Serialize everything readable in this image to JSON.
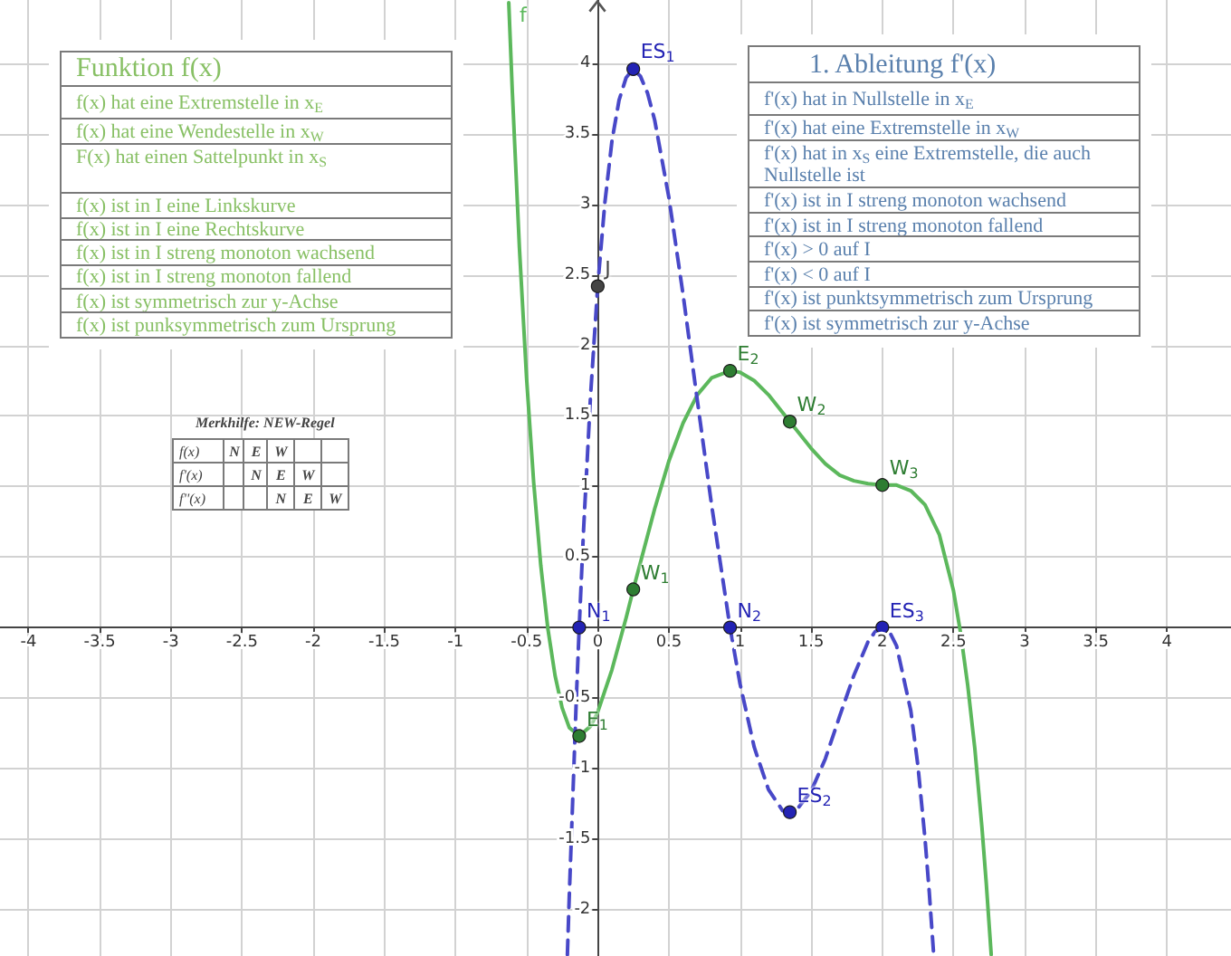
{
  "chart_data": {
    "type": "line",
    "xlim": [
      -4.2,
      4.45
    ],
    "ylim": [
      -2.33,
      4.45
    ],
    "xticks": [
      -4,
      -3.5,
      -3,
      -2.5,
      -2,
      -1.5,
      -1,
      -0.5,
      0,
      0.5,
      1,
      1.5,
      2,
      2.5,
      3,
      3.5,
      4
    ],
    "yticks": [
      -2,
      -1.5,
      -1,
      -0.5,
      {
        "value": 0,
        "label": null
      },
      0.5,
      1,
      1.5,
      2,
      2.5,
      3,
      3.5,
      4
    ],
    "grid": true,
    "series": [
      {
        "name": "f",
        "color": "#5cb85c",
        "line_style": "solid",
        "x": [
          -0.625,
          -0.6,
          -0.55,
          -0.5,
          -0.45,
          -0.4,
          -0.35,
          -0.3,
          -0.25,
          -0.2,
          -0.13,
          -0.05,
          0,
          0.1,
          0.2,
          0.25,
          0.3,
          0.4,
          0.5,
          0.6,
          0.7,
          0.8,
          0.93,
          1,
          1.1,
          1.2,
          1.35,
          1.5,
          1.6,
          1.7,
          1.8,
          1.9,
          2,
          2.1,
          2.2,
          2.3,
          2.4,
          2.5,
          2.55,
          2.6,
          2.65,
          2.7,
          2.73,
          2.765
        ],
        "values": [
          4.43,
          3.8,
          2.69,
          1.77,
          1.03,
          0.44,
          -0.01,
          -0.34,
          -0.57,
          -0.71,
          -0.77,
          -0.7,
          -0.6,
          -0.3,
          0.07,
          0.27,
          0.46,
          0.84,
          1.18,
          1.45,
          1.65,
          1.77,
          1.82,
          1.81,
          1.75,
          1.65,
          1.46,
          1.27,
          1.16,
          1.08,
          1.04,
          1.02,
          1.01,
          1.01,
          0.97,
          0.87,
          0.66,
          0.26,
          -0.04,
          -0.41,
          -0.86,
          -1.42,
          -1.81,
          -2.32
        ]
      },
      {
        "color": "#4848c8",
        "line_style": "dashed",
        "x": [
          -0.213,
          -0.2,
          -0.15,
          -0.13,
          -0.1,
          -0.05,
          0,
          0.05,
          0.1,
          0.15,
          0.2,
          0.25,
          0.3,
          0.35,
          0.4,
          0.5,
          0.6,
          0.7,
          0.8,
          0.93,
          1,
          1.1,
          1.2,
          1.3,
          1.35,
          1.4,
          1.5,
          1.6,
          1.7,
          1.8,
          1.9,
          1.95,
          2,
          2.05,
          2.1,
          2.2,
          2.25,
          2.3,
          2.33,
          2.36
        ],
        "values": [
          -2.32,
          -1.91,
          -0.5,
          0,
          0.68,
          1.65,
          2.42,
          3.01,
          3.45,
          3.74,
          3.9,
          3.96,
          3.91,
          3.79,
          3.6,
          3.05,
          2.36,
          1.61,
          0.87,
          0,
          -0.4,
          -0.85,
          -1.15,
          -1.3,
          -1.31,
          -1.29,
          -1.16,
          -0.93,
          -0.63,
          -0.34,
          -0.1,
          -0.03,
          0,
          -0.03,
          -0.13,
          -0.59,
          -0.98,
          -1.5,
          -1.88,
          -2.31
        ]
      },
      {
        "type": "scatter",
        "marker": "circle",
        "color": "#2e7d32",
        "x": [
          -0.13,
          0.25,
          0.93,
          1.35,
          2
        ],
        "values": [
          -0.77,
          0.27,
          1.82,
          1.46,
          1.01
        ]
      },
      {
        "type": "scatter",
        "marker": "circle",
        "color": "#2323b4",
        "x": [
          -0.13,
          0.25,
          0.93,
          1.35,
          2
        ],
        "values": [
          0,
          3.96,
          0,
          -1.31,
          0
        ]
      },
      {
        "type": "scatter",
        "marker": "circle",
        "color": "#444444",
        "x": [
          0
        ],
        "values": [
          2.42
        ]
      }
    ],
    "annotations": [
      "Funktion f(x)",
      "f(x) hat eine Extremstelle in x$_{E}$",
      "f(x) hat eine Wendestelle in x$_{W}$",
      "F(x) hat einen Sattelpunkt in x$_{S}$",
      "f(x) ist in I eine Linkskurve",
      "f(x) ist in I eine Rechtskurve",
      "f(x) ist in I streng monoton wachsend",
      "f(x) ist in I streng monoton fallend",
      "f(x) ist symmetrisch zur y-Achse",
      "f(x) ist punksymmetrisch zum Ursprung",
      "1. Ableitung f'(x)",
      "f'(x) hat in Nullstelle in x$_{E}$",
      "f'(x) hat eine Extremstelle in x$_{W}$",
      "f'(x) hat in x$_{S}$ eine Extremstelle, die auch Nullstelle ist",
      "f'(x) ist in I streng monoton wachsend",
      "f'(x) ist in I streng monoton fallend",
      "f'(x) > 0 auf I",
      "f'(x) < 0 auf I",
      "f'(x) ist punktsymmetrisch zum Ursprung",
      "f'(x) ist symmetrisch zur y-Achse",
      "Merkhilfe: NEW-Regel",
      "f(x)",
      "N",
      "E",
      "W",
      "f'(x)",
      "N",
      "E",
      "W",
      "f''(x)",
      "N",
      "E",
      "W",
      {
        "text": "E$_{1}$",
        "x": -0.13,
        "y": -0.77
      },
      {
        "text": "W$_{1}$",
        "x": 0.25,
        "y": 0.27
      },
      {
        "text": "E$_{2}$",
        "x": 0.93,
        "y": 1.82
      },
      {
        "text": "W$_{2}$",
        "x": 1.35,
        "y": 1.46
      },
      {
        "text": "W$_{3}$",
        "x": 2,
        "y": 1.01
      },
      {
        "text": "N$_{1}$",
        "x": -0.13,
        "y": 0
      },
      {
        "text": "ES$_{1}$",
        "x": 0.25,
        "y": 3.96
      },
      {
        "text": "N$_{2}$",
        "x": 0.93,
        "y": 0
      },
      {
        "text": "ES$_{2}$",
        "x": 1.35,
        "y": -1.31
      },
      {
        "text": "ES$_{3}$",
        "x": 2,
        "y": 0
      },
      {
        "text": "J",
        "x": 0,
        "y": 2.42
      }
    ]
  }
}
